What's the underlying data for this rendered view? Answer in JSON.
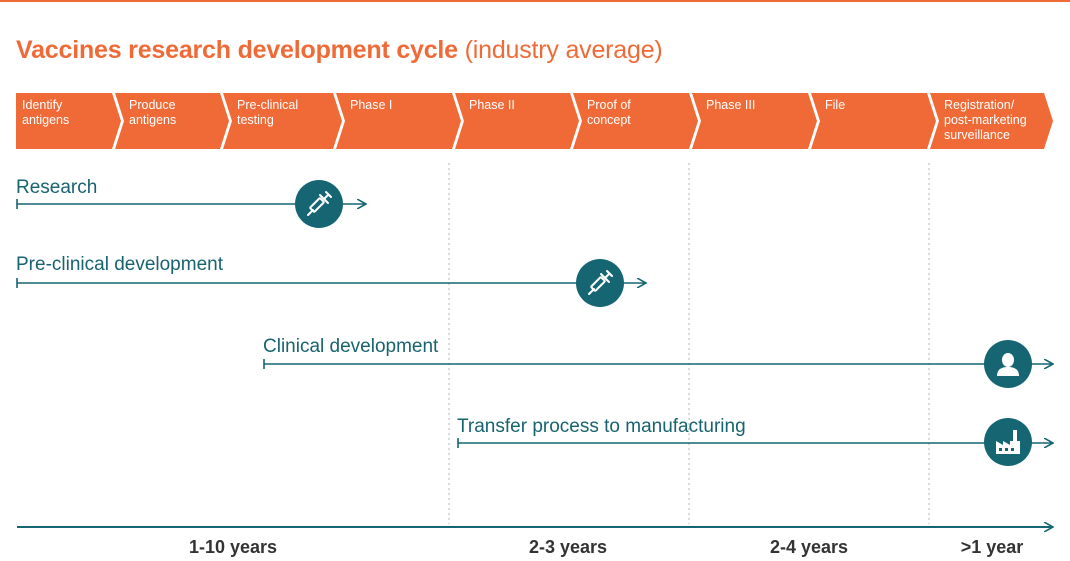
{
  "title": {
    "main": "Vaccines research development cycle",
    "sub": "(industry average)"
  },
  "stages": [
    {
      "lines": [
        "Identify",
        "antigens"
      ]
    },
    {
      "lines": [
        "Produce",
        "antigens"
      ]
    },
    {
      "lines": [
        "Pre-clinical",
        "testing"
      ]
    },
    {
      "lines": [
        "Phase I"
      ]
    },
    {
      "lines": [
        "Phase II"
      ]
    },
    {
      "lines": [
        "Proof of",
        "concept"
      ]
    },
    {
      "lines": [
        "Phase III"
      ]
    },
    {
      "lines": [
        "File"
      ]
    },
    {
      "lines": [
        "Registration/",
        "post-marketing",
        "surveillance"
      ]
    }
  ],
  "streams": [
    {
      "label": "Research",
      "icon": "syringe-icon"
    },
    {
      "label": "Pre-clinical development",
      "icon": "syringe-icon"
    },
    {
      "label": "Clinical development",
      "icon": "person-icon"
    },
    {
      "label": "Transfer process to manufacturing",
      "icon": "factory-icon"
    }
  ],
  "durations": [
    "1-10 years",
    "2-3 years",
    "2-4 years",
    ">1 year"
  ],
  "colors": {
    "accent": "#ef6a37",
    "teal": "#156672",
    "teal_text": "#17636f"
  }
}
